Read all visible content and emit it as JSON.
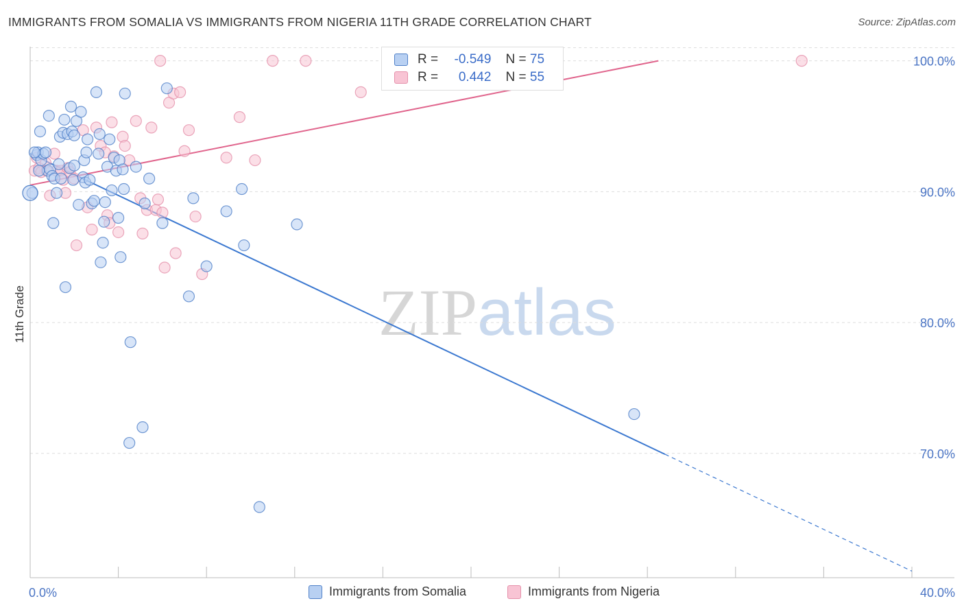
{
  "title": "IMMIGRANTS FROM SOMALIA VS IMMIGRANTS FROM NIGERIA 11TH GRADE CORRELATION CHART",
  "source": "Source: ZipAtlas.com",
  "watermark": {
    "zip": "ZIP",
    "atlas": "atlas"
  },
  "legend_top": {
    "rows": [
      {
        "r_label": "R =",
        "r_value": "-0.549",
        "n_label": "N =",
        "n_value": "75"
      },
      {
        "r_label": "R =",
        "r_value": "0.442",
        "n_label": "N =",
        "n_value": "55"
      }
    ]
  },
  "colors": {
    "somalia_fill": "#b8d0f2",
    "somalia_stroke": "#4f80c8",
    "somalia_line": "#3b78d0",
    "nigeria_fill": "#f8c4d4",
    "nigeria_stroke": "#e590aa",
    "nigeria_line": "#e0648c",
    "tick_label": "#4a74c4",
    "grid": "#dddddd"
  },
  "chart_data": {
    "type": "scatter",
    "title": "IMMIGRANTS FROM SOMALIA VS IMMIGRANTS FROM NIGERIA 11TH GRADE CORRELATION CHART",
    "xlabel": "",
    "ylabel": "11th Grade",
    "xlim": [
      0,
      40
    ],
    "ylim": [
      60.5,
      101.5
    ],
    "x_tick_labels": [
      "0.0%",
      "40.0%"
    ],
    "y_ticks": [
      70,
      80,
      90,
      100
    ],
    "y_tick_labels": [
      "70.0%",
      "80.0%",
      "90.0%",
      "100.0%"
    ],
    "grid": true,
    "legend": "bottom",
    "series": [
      {
        "name": "Immigrants from Somalia",
        "r": -0.549,
        "n": 75,
        "trend": {
          "x0": 0,
          "y0": 92.9,
          "x1": 40,
          "y1": 61.0,
          "solid_until_x": 28.8
        },
        "points": [
          [
            0.1,
            89.9
          ],
          [
            0.3,
            92.8
          ],
          [
            0.35,
            93.0
          ],
          [
            0.45,
            94.6
          ],
          [
            0.5,
            92.4
          ],
          [
            0.6,
            92.9
          ],
          [
            0.7,
            93.0
          ],
          [
            0.8,
            91.6
          ],
          [
            0.85,
            95.8
          ],
          [
            0.9,
            91.7
          ],
          [
            1.0,
            91.2
          ],
          [
            1.05,
            87.6
          ],
          [
            1.1,
            91.0
          ],
          [
            1.2,
            89.9
          ],
          [
            1.3,
            92.1
          ],
          [
            1.35,
            94.2
          ],
          [
            1.4,
            91.0
          ],
          [
            1.5,
            94.5
          ],
          [
            1.55,
            95.5
          ],
          [
            1.6,
            82.7
          ],
          [
            1.7,
            94.4
          ],
          [
            1.8,
            91.8
          ],
          [
            1.85,
            96.5
          ],
          [
            1.9,
            94.6
          ],
          [
            1.95,
            90.9
          ],
          [
            2.0,
            94.3
          ],
          [
            2.1,
            95.4
          ],
          [
            2.2,
            89.0
          ],
          [
            2.3,
            96.1
          ],
          [
            2.4,
            91.1
          ],
          [
            2.45,
            92.4
          ],
          [
            2.5,
            90.7
          ],
          [
            2.55,
            93.0
          ],
          [
            2.6,
            94.0
          ],
          [
            2.7,
            90.9
          ],
          [
            2.8,
            89.1
          ],
          [
            2.9,
            89.3
          ],
          [
            3.0,
            97.6
          ],
          [
            3.1,
            92.9
          ],
          [
            3.15,
            94.4
          ],
          [
            3.2,
            84.6
          ],
          [
            3.3,
            86.1
          ],
          [
            3.35,
            87.7
          ],
          [
            3.4,
            89.2
          ],
          [
            3.5,
            91.9
          ],
          [
            3.6,
            94.0
          ],
          [
            3.7,
            90.1
          ],
          [
            3.8,
            92.6
          ],
          [
            3.9,
            91.6
          ],
          [
            4.0,
            88.0
          ],
          [
            4.05,
            92.4
          ],
          [
            4.1,
            85.0
          ],
          [
            4.2,
            91.7
          ],
          [
            4.25,
            90.2
          ],
          [
            4.3,
            97.5
          ],
          [
            4.5,
            70.8
          ],
          [
            4.55,
            78.5
          ],
          [
            4.8,
            91.9
          ],
          [
            5.1,
            72.0
          ],
          [
            5.2,
            89.1
          ],
          [
            5.4,
            91.0
          ],
          [
            6.0,
            87.6
          ],
          [
            6.2,
            97.9
          ],
          [
            7.2,
            82.0
          ],
          [
            7.4,
            89.5
          ],
          [
            8.0,
            84.3
          ],
          [
            8.9,
            88.5
          ],
          [
            9.6,
            90.2
          ],
          [
            9.7,
            85.9
          ],
          [
            10.4,
            65.9
          ],
          [
            12.1,
            87.5
          ],
          [
            27.4,
            73.0
          ],
          [
            0.2,
            93.0
          ],
          [
            0.4,
            91.6
          ],
          [
            2.0,
            92.0
          ]
        ]
      },
      {
        "name": "Immigrants from Nigeria",
        "r": 0.442,
        "n": 55,
        "trend": {
          "x0": 0,
          "y0": 90.5,
          "x1": 28.5,
          "y1": 100.0
        },
        "points": [
          [
            0.2,
            91.6
          ],
          [
            0.3,
            92.6
          ],
          [
            0.4,
            91.8
          ],
          [
            0.5,
            91.5
          ],
          [
            0.7,
            92.2
          ],
          [
            0.75,
            91.6
          ],
          [
            0.9,
            89.7
          ],
          [
            1.1,
            92.9
          ],
          [
            1.2,
            91.6
          ],
          [
            1.4,
            91.6
          ],
          [
            1.5,
            90.9
          ],
          [
            1.6,
            89.9
          ],
          [
            1.7,
            91.8
          ],
          [
            1.8,
            91.5
          ],
          [
            2.0,
            91.0
          ],
          [
            2.1,
            85.9
          ],
          [
            2.4,
            94.7
          ],
          [
            2.6,
            88.8
          ],
          [
            2.8,
            87.1
          ],
          [
            3.0,
            94.9
          ],
          [
            3.2,
            93.5
          ],
          [
            3.4,
            93.0
          ],
          [
            3.5,
            88.2
          ],
          [
            3.6,
            87.6
          ],
          [
            3.7,
            95.3
          ],
          [
            3.8,
            92.7
          ],
          [
            4.0,
            86.9
          ],
          [
            4.2,
            94.2
          ],
          [
            4.3,
            93.5
          ],
          [
            4.5,
            92.4
          ],
          [
            4.8,
            95.4
          ],
          [
            5.0,
            89.5
          ],
          [
            5.1,
            86.8
          ],
          [
            5.3,
            88.6
          ],
          [
            5.5,
            94.9
          ],
          [
            5.7,
            88.6
          ],
          [
            5.8,
            89.4
          ],
          [
            6.0,
            88.4
          ],
          [
            6.1,
            84.2
          ],
          [
            6.3,
            96.8
          ],
          [
            6.5,
            97.5
          ],
          [
            6.6,
            85.3
          ],
          [
            6.8,
            97.6
          ],
          [
            7.0,
            93.1
          ],
          [
            7.2,
            94.7
          ],
          [
            7.5,
            88.1
          ],
          [
            7.8,
            83.7
          ],
          [
            8.9,
            92.6
          ],
          [
            9.5,
            95.7
          ],
          [
            10.2,
            92.4
          ],
          [
            5.9,
            100.0
          ],
          [
            11.0,
            100.0
          ],
          [
            12.5,
            100.0
          ],
          [
            15.0,
            97.6
          ],
          [
            35.0,
            100.0
          ]
        ]
      }
    ]
  },
  "legend_bottom": {
    "items": [
      {
        "label": "Immigrants from Somalia"
      },
      {
        "label": "Immigrants from Nigeria"
      }
    ]
  }
}
